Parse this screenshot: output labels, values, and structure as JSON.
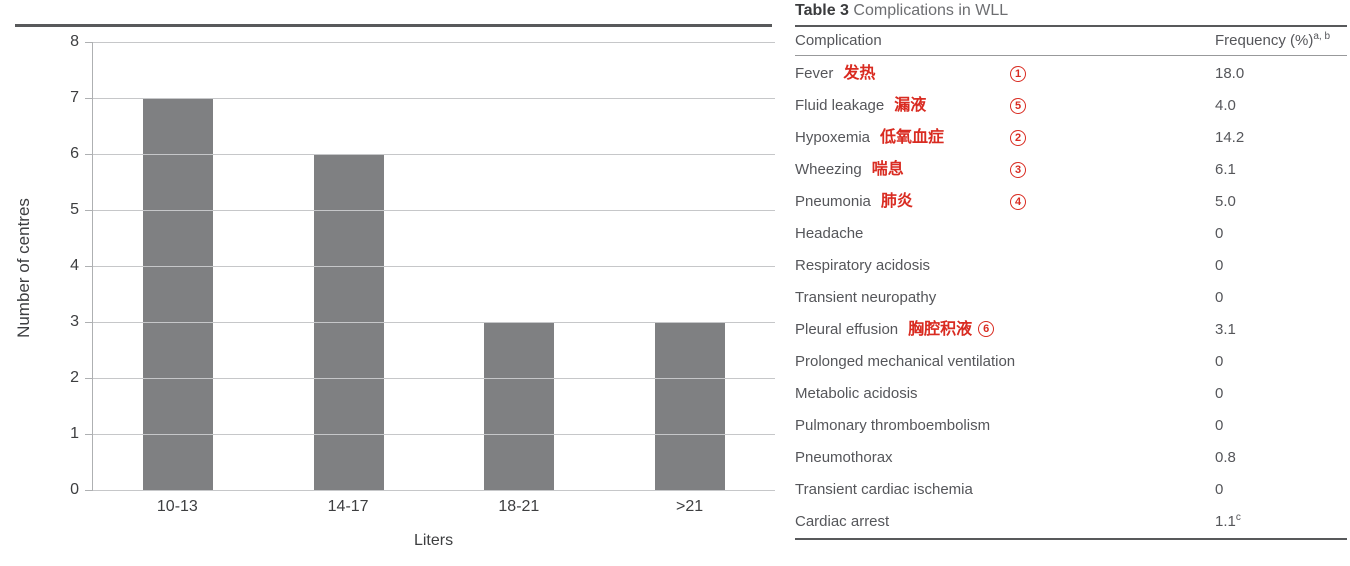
{
  "chart_data": {
    "type": "bar",
    "categories": [
      "10-13",
      "14-17",
      "18-21",
      ">21"
    ],
    "values": [
      7,
      6,
      3,
      3
    ],
    "title": "",
    "xlabel": "Liters",
    "ylabel": "Number of centres",
    "ylim": [
      0,
      8
    ],
    "yticks": [
      0,
      1,
      2,
      3,
      4,
      5,
      6,
      7,
      8
    ],
    "grid": true,
    "legend": "none",
    "bar_color": "#7f8082"
  },
  "table": {
    "title_bold": "Table 3",
    "title_rest": "Complications in WLL",
    "columns": [
      "Complication",
      "Frequency (%)"
    ],
    "header_superscript": "a, b",
    "rows": [
      {
        "name": "Fever",
        "annotation": "发热",
        "marker": "1",
        "frequency": "18.0"
      },
      {
        "name": "Fluid leakage",
        "annotation": "漏液",
        "marker": "5",
        "frequency": "4.0"
      },
      {
        "name": "Hypoxemia",
        "annotation": "低氧血症",
        "marker": "2",
        "frequency": "14.2"
      },
      {
        "name": "Wheezing",
        "annotation": "喘息",
        "marker": "3",
        "frequency": "6.1"
      },
      {
        "name": "Pneumonia",
        "annotation": "肺炎",
        "marker": "4",
        "frequency": "5.0"
      },
      {
        "name": "Headache",
        "frequency": "0"
      },
      {
        "name": "Respiratory acidosis",
        "frequency": "0"
      },
      {
        "name": "Transient neuropathy",
        "frequency": "0"
      },
      {
        "name": "Pleural effusion",
        "annotation": "胸腔积液",
        "marker": "6",
        "marker_inline": true,
        "frequency": "3.1"
      },
      {
        "name": "Prolonged mechanical ventilation",
        "frequency": "0"
      },
      {
        "name": "Metabolic acidosis",
        "frequency": "0"
      },
      {
        "name": "Pulmonary thromboembolism",
        "frequency": "0"
      },
      {
        "name": "Pneumothorax",
        "frequency": "0.8"
      },
      {
        "name": "Transient cardiac ischemia",
        "frequency": "0"
      },
      {
        "name": "Cardiac arrest",
        "frequency": "1.1",
        "frequency_superscript": "c"
      }
    ]
  },
  "colors": {
    "bar": "#7f8082",
    "annotation_red": "#d92b21",
    "rule_dark": "#58595b",
    "gridline": "#c6c7c9",
    "text": "#55565a"
  }
}
